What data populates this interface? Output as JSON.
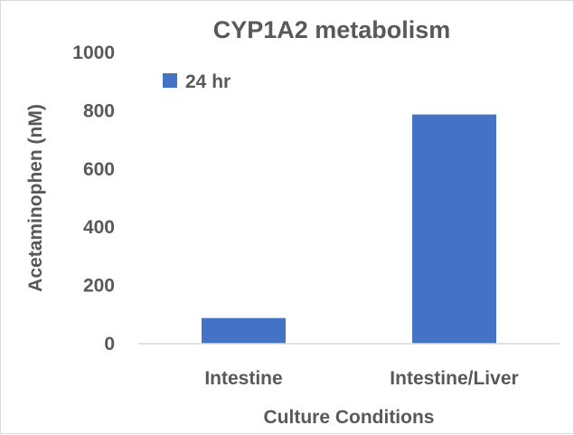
{
  "chart_data": {
    "type": "bar",
    "title": "CYP1A2 metabolism",
    "xlabel": "Culture Conditions",
    "ylabel": "Acetaminophen (nM)",
    "categories": [
      "Intestine",
      "Intestine/Liver"
    ],
    "series": [
      {
        "name": "24 hr",
        "color": "#4472c4",
        "values": [
          88,
          787
        ]
      }
    ],
    "ylim": [
      0,
      1000
    ],
    "yticks": [
      0,
      200,
      400,
      600,
      800,
      1000
    ],
    "grid": false,
    "legend_position": "top-left"
  }
}
